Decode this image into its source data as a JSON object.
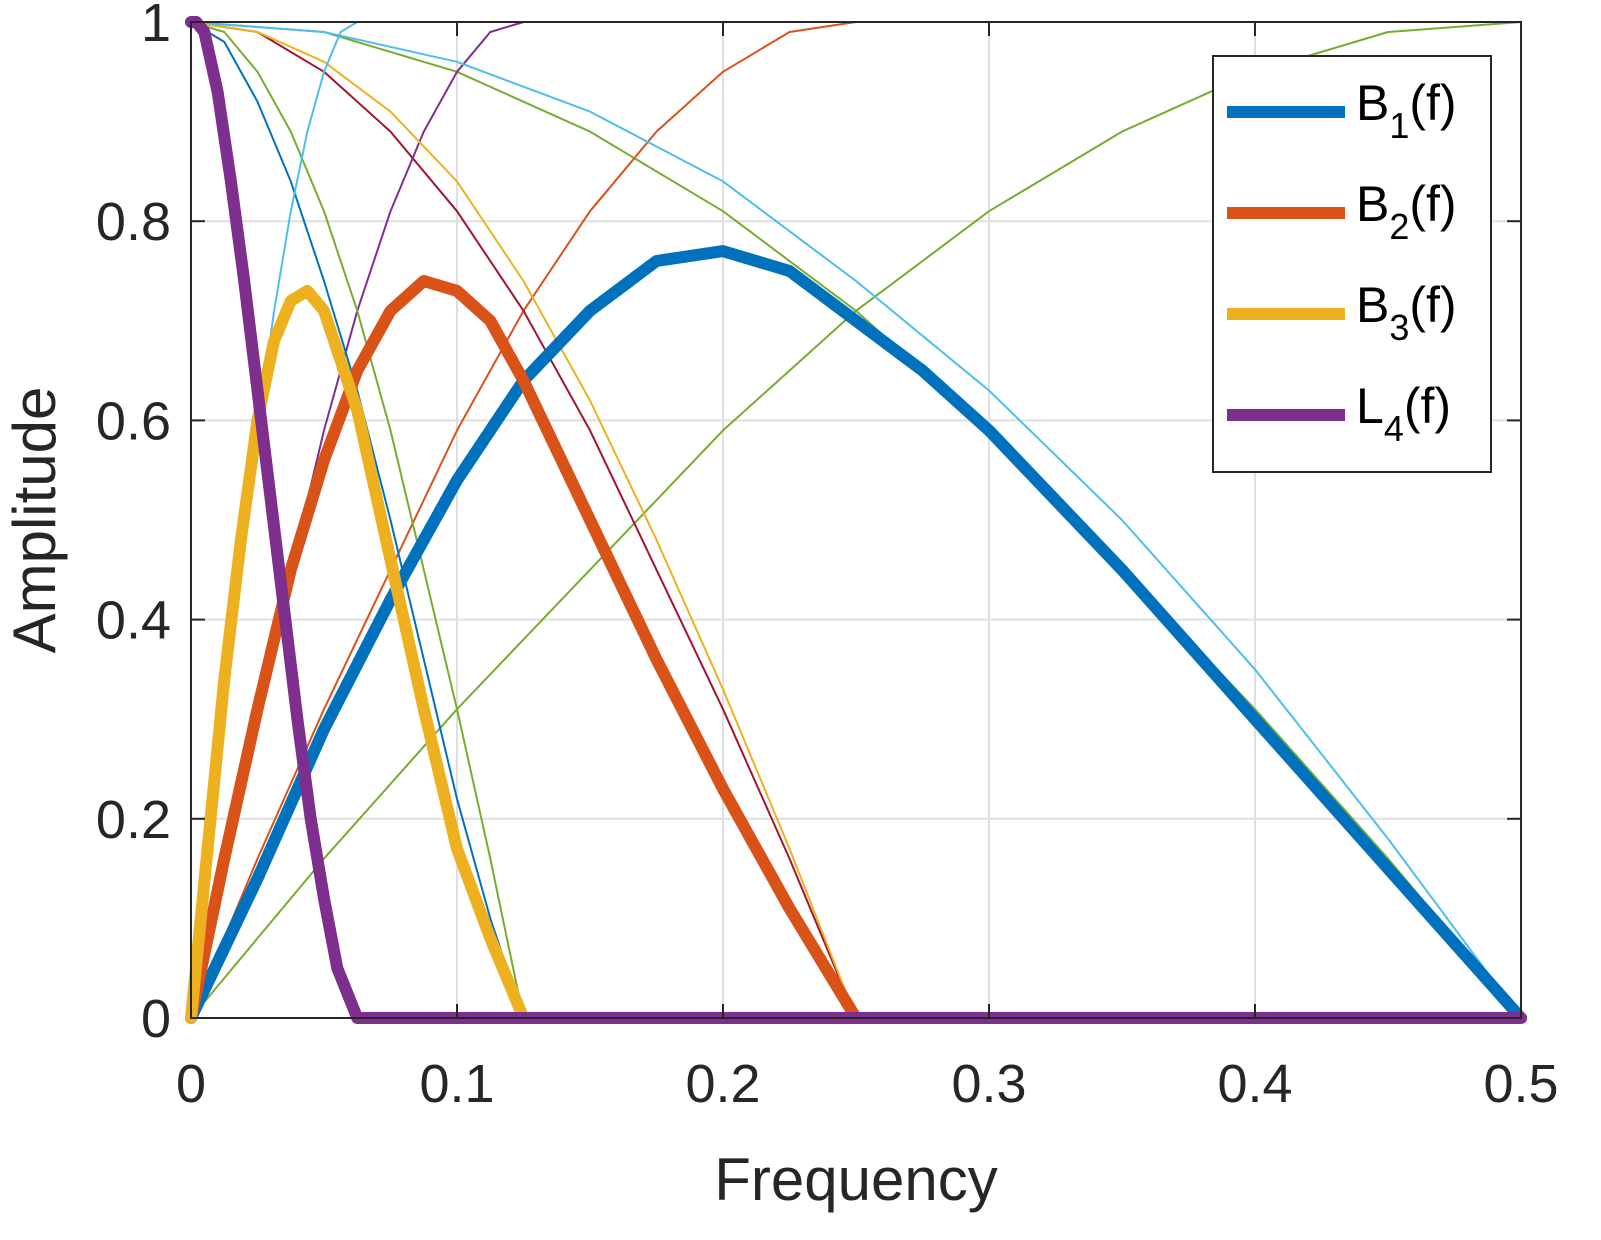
{
  "chart_data": {
    "type": "line",
    "title": "",
    "xlabel": "Frequency",
    "ylabel": "Amplitude",
    "xlim": [
      0,
      0.5
    ],
    "ylim": [
      0,
      1
    ],
    "xticks": [
      0,
      0.1,
      0.2,
      0.3,
      0.4,
      0.5
    ],
    "xtick_labels": [
      "0",
      "0.1",
      "0.2",
      "0.3",
      "0.4",
      "0.5"
    ],
    "yticks": [
      0,
      0.2,
      0.4,
      0.6,
      0.8,
      1
    ],
    "ytick_labels": [
      "0",
      "0.2",
      "0.4",
      "0.6",
      "0.8",
      "1"
    ],
    "grid": true,
    "legend_position": "top-right",
    "series": [
      {
        "name": "B1(f)",
        "label_main": "B",
        "label_sub": "1",
        "label_suffix": "(f)",
        "color": "#0072BD",
        "emphasis": "thick",
        "in_legend": true,
        "x": [
          0,
          0.025,
          0.05,
          0.075,
          0.1,
          0.125,
          0.15,
          0.175,
          0.2,
          0.225,
          0.25,
          0.275,
          0.3,
          0.35,
          0.4,
          0.45,
          0.5
        ],
        "y": [
          0,
          0.14,
          0.29,
          0.42,
          0.54,
          0.64,
          0.71,
          0.76,
          0.77,
          0.75,
          0.7,
          0.65,
          0.59,
          0.45,
          0.3,
          0.15,
          0
        ]
      },
      {
        "name": "B2(f)",
        "label_main": "B",
        "label_sub": "2",
        "label_suffix": "(f)",
        "color": "#D95319",
        "emphasis": "thick",
        "in_legend": true,
        "x": [
          0,
          0.0125,
          0.025,
          0.0375,
          0.05,
          0.0625,
          0.075,
          0.0875,
          0.1,
          0.1125,
          0.125,
          0.15,
          0.175,
          0.2,
          0.225,
          0.25,
          0.3,
          0.4,
          0.5
        ],
        "y": [
          0,
          0.16,
          0.31,
          0.45,
          0.56,
          0.65,
          0.71,
          0.74,
          0.73,
          0.7,
          0.64,
          0.5,
          0.36,
          0.23,
          0.11,
          0,
          0,
          0,
          0
        ]
      },
      {
        "name": "B3(f)",
        "label_main": "B",
        "label_sub": "3",
        "label_suffix": "(f)",
        "color": "#EDB120",
        "emphasis": "thick",
        "in_legend": true,
        "x": [
          0,
          0.00625,
          0.0125,
          0.01875,
          0.025,
          0.03125,
          0.0375,
          0.04375,
          0.05,
          0.0625,
          0.075,
          0.0875,
          0.1,
          0.1125,
          0.125,
          0.2,
          0.3,
          0.4,
          0.5
        ],
        "y": [
          0,
          0.17,
          0.34,
          0.48,
          0.6,
          0.68,
          0.72,
          0.73,
          0.71,
          0.61,
          0.46,
          0.31,
          0.17,
          0.08,
          0,
          0,
          0,
          0,
          0
        ]
      },
      {
        "name": "L4(f)",
        "label_main": "L",
        "label_sub": "4",
        "label_suffix": "(f)",
        "color": "#7E2F8E",
        "emphasis": "thick",
        "in_legend": true,
        "x": [
          0,
          0.002,
          0.005,
          0.01,
          0.015,
          0.02,
          0.025,
          0.03,
          0.035,
          0.04,
          0.045,
          0.05,
          0.055,
          0.0625,
          0.1,
          0.2,
          0.3,
          0.4,
          0.5
        ],
        "y": [
          1,
          1,
          0.99,
          0.93,
          0.84,
          0.74,
          0.63,
          0.52,
          0.41,
          0.3,
          0.2,
          0.12,
          0.05,
          0,
          0,
          0,
          0,
          0,
          0
        ]
      },
      {
        "name": "thin-green-lowpass-0.5",
        "color": "#77AC30",
        "emphasis": "thin",
        "in_legend": false,
        "x": [
          0,
          0.05,
          0.1,
          0.15,
          0.2,
          0.25,
          0.3,
          0.35,
          0.4,
          0.45,
          0.5
        ],
        "y": [
          1,
          0.99,
          0.95,
          0.89,
          0.81,
          0.71,
          0.59,
          0.45,
          0.31,
          0.16,
          0
        ]
      },
      {
        "name": "thin-green-highpass-0.5",
        "color": "#77AC30",
        "emphasis": "thin",
        "in_legend": false,
        "x": [
          0,
          0.05,
          0.1,
          0.15,
          0.2,
          0.25,
          0.3,
          0.35,
          0.4,
          0.45,
          0.5
        ],
        "y": [
          0,
          0.16,
          0.31,
          0.45,
          0.59,
          0.71,
          0.81,
          0.89,
          0.95,
          0.99,
          1
        ]
      },
      {
        "name": "thin-orange-highpass-0.25",
        "color": "#D95319",
        "emphasis": "thin",
        "in_legend": false,
        "x": [
          0,
          0.025,
          0.05,
          0.075,
          0.1,
          0.125,
          0.15,
          0.175,
          0.2,
          0.225,
          0.25,
          0.5
        ],
        "y": [
          0,
          0.16,
          0.31,
          0.45,
          0.59,
          0.71,
          0.81,
          0.89,
          0.95,
          0.99,
          1,
          1
        ]
      },
      {
        "name": "thin-darkred-lowpass-0.25",
        "color": "#A2142F",
        "emphasis": "thin",
        "in_legend": false,
        "x": [
          0,
          0.025,
          0.05,
          0.075,
          0.1,
          0.125,
          0.15,
          0.175,
          0.2,
          0.225,
          0.25,
          0.5
        ],
        "y": [
          1,
          0.99,
          0.95,
          0.89,
          0.81,
          0.71,
          0.59,
          0.45,
          0.31,
          0.16,
          0,
          0
        ]
      },
      {
        "name": "thin-purple-highpass-0.125",
        "color": "#7E2F8E",
        "emphasis": "thin",
        "in_legend": false,
        "x": [
          0,
          0.0125,
          0.025,
          0.0375,
          0.05,
          0.0625,
          0.075,
          0.0875,
          0.1,
          0.1125,
          0.125,
          0.5
        ],
        "y": [
          0,
          0.16,
          0.31,
          0.45,
          0.59,
          0.71,
          0.81,
          0.89,
          0.95,
          0.99,
          1,
          1
        ]
      },
      {
        "name": "thin-yellow-lowpass-0.25",
        "color": "#EDB120",
        "emphasis": "thin",
        "in_legend": false,
        "x": [
          0,
          0.025,
          0.05,
          0.075,
          0.1,
          0.125,
          0.15,
          0.175,
          0.2,
          0.225,
          0.25,
          0.5
        ],
        "y": [
          1,
          0.99,
          0.96,
          0.91,
          0.84,
          0.74,
          0.62,
          0.48,
          0.33,
          0.17,
          0,
          0
        ]
      },
      {
        "name": "thin-green-lowpass-0.125",
        "color": "#77AC30",
        "emphasis": "thin",
        "in_legend": false,
        "x": [
          0,
          0.0125,
          0.025,
          0.0375,
          0.05,
          0.0625,
          0.075,
          0.0875,
          0.1,
          0.1125,
          0.125,
          0.5
        ],
        "y": [
          1,
          0.99,
          0.95,
          0.89,
          0.81,
          0.71,
          0.59,
          0.45,
          0.31,
          0.16,
          0,
          0
        ]
      },
      {
        "name": "thin-blue-lowpass-0.125",
        "color": "#0072BD",
        "emphasis": "thin",
        "in_legend": false,
        "x": [
          0,
          0.0125,
          0.025,
          0.0375,
          0.05,
          0.0625,
          0.075,
          0.0875,
          0.1,
          0.1125,
          0.125,
          0.5
        ],
        "y": [
          1,
          0.98,
          0.92,
          0.84,
          0.74,
          0.63,
          0.5,
          0.36,
          0.22,
          0.1,
          0,
          0
        ]
      },
      {
        "name": "thin-cyan-highpass-0.0625",
        "color": "#4DBEEE",
        "emphasis": "thin",
        "in_legend": false,
        "x": [
          0,
          0.00625,
          0.0125,
          0.01875,
          0.025,
          0.03125,
          0.0375,
          0.04375,
          0.05,
          0.05625,
          0.0625,
          0.5
        ],
        "y": [
          0,
          0.16,
          0.31,
          0.45,
          0.59,
          0.71,
          0.81,
          0.89,
          0.95,
          0.99,
          1,
          1
        ]
      },
      {
        "name": "thin-cyan-lowpass-0.5",
        "color": "#4DBEEE",
        "emphasis": "thin",
        "in_legend": false,
        "x": [
          0,
          0.05,
          0.1,
          0.15,
          0.2,
          0.25,
          0.3,
          0.35,
          0.4,
          0.45,
          0.5
        ],
        "y": [
          1,
          0.99,
          0.96,
          0.91,
          0.84,
          0.74,
          0.63,
          0.5,
          0.35,
          0.18,
          0
        ]
      }
    ]
  }
}
